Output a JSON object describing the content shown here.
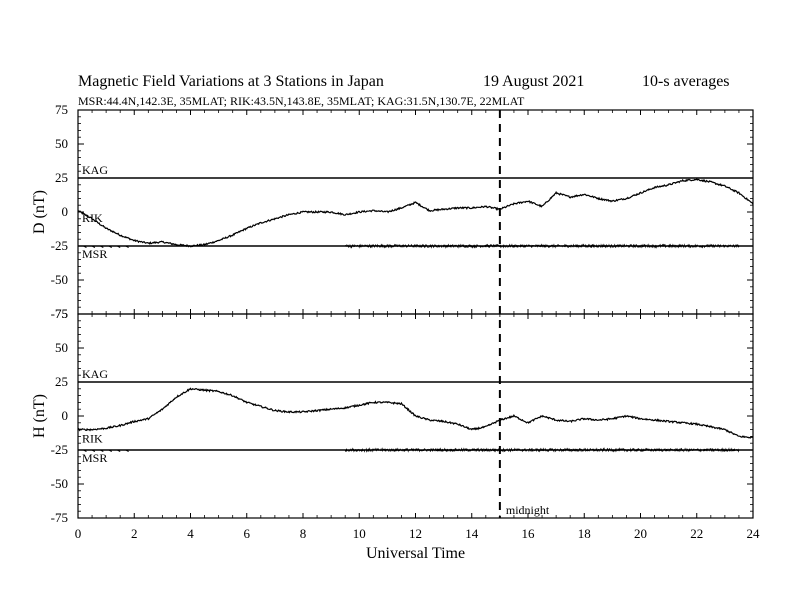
{
  "title": {
    "main": "Magnetic Field Variations at 3 Stations in Japan",
    "date": "19  August  2021",
    "averaging": "10-s averages"
  },
  "subtitle": "MSR:44.4N,142.3E, 35MLAT;  RIK:43.5N,143.8E, 35MLAT;  KAG:31.5N,130.7E, 22MLAT",
  "chart_data": {
    "type": "line",
    "xlabel": "Universal Time",
    "xlim": [
      0,
      24
    ],
    "x_ticks": [
      0,
      2,
      4,
      6,
      8,
      10,
      12,
      14,
      16,
      18,
      20,
      22,
      24
    ],
    "marker": {
      "x": 15,
      "label": "midnight"
    },
    "panels": [
      {
        "ylabel": "D (nT)",
        "ylim": [
          -75,
          75
        ],
        "y_ticks": [
          75,
          50,
          25,
          0,
          -25,
          -50,
          -75
        ],
        "series": [
          {
            "name": "KAG",
            "type": "flat",
            "offset": 25,
            "label_y": 25
          },
          {
            "name": "RIK",
            "offset": 0,
            "label_y": 0,
            "x": [
              0,
              0.5,
              1,
              1.5,
              2,
              2.5,
              3,
              3.5,
              4,
              4.5,
              5,
              5.5,
              6,
              6.5,
              7,
              7.5,
              8,
              8.5,
              9,
              9.5,
              10,
              10.5,
              11,
              11.5,
              12,
              12.5,
              13,
              13.5,
              14,
              14.5,
              15,
              15.5,
              16,
              16.5,
              17,
              17.5,
              18,
              18.5,
              19,
              19.5,
              20,
              20.5,
              21,
              21.5,
              22,
              22.5,
              23,
              23.5,
              24
            ],
            "y": [
              1,
              -5,
              -12,
              -17,
              -21,
              -23,
              -22,
              -24,
              -25,
              -24,
              -21,
              -17,
              -12,
              -8,
              -5,
              -2,
              0,
              0,
              0,
              -2,
              0,
              1,
              0,
              3,
              7,
              1,
              2,
              3,
              3,
              4,
              2,
              6,
              8,
              4,
              14,
              11,
              13,
              10,
              8,
              10,
              14,
              18,
              20,
              23,
              24,
              22,
              19,
              14,
              6
            ]
          },
          {
            "name": "MSR",
            "type": "noise",
            "offset": -25,
            "label_y": -25,
            "start": 9.5,
            "end": 23.5,
            "amplitude": 1
          }
        ]
      },
      {
        "ylabel": "H (nT)",
        "ylim": [
          -75,
          75
        ],
        "y_ticks": [
          75,
          50,
          25,
          0,
          -25,
          -50,
          -75
        ],
        "series": [
          {
            "name": "KAG",
            "type": "flat",
            "offset": 25,
            "label_y": 25
          },
          {
            "name": "RIK",
            "offset": 0,
            "label_y": -12,
            "x": [
              0,
              0.5,
              1,
              1.5,
              2,
              2.5,
              3,
              3.5,
              4,
              4.5,
              5,
              5.5,
              6,
              6.5,
              7,
              7.5,
              8,
              8.5,
              9,
              9.5,
              10,
              10.5,
              11,
              11.5,
              12,
              12.5,
              13,
              13.5,
              14,
              14.5,
              15,
              15.5,
              16,
              16.5,
              17,
              17.5,
              18,
              18.5,
              19,
              19.5,
              20,
              20.5,
              21,
              21.5,
              22,
              22.5,
              23,
              23.5,
              24
            ],
            "y": [
              -10,
              -10,
              -9,
              -7,
              -4,
              -2,
              5,
              14,
              20,
              19,
              18,
              15,
              10,
              7,
              4,
              3,
              3,
              4,
              5,
              6,
              8,
              10,
              10,
              9,
              0,
              -3,
              -4,
              -6,
              -10,
              -8,
              -3,
              0,
              -5,
              0,
              -3,
              -4,
              -2,
              -3,
              -2,
              0,
              -2,
              -3,
              -4,
              -5,
              -6,
              -8,
              -10,
              -15,
              -16
            ]
          },
          {
            "name": "MSR",
            "type": "noise",
            "offset": -25,
            "label_y": -25,
            "start": 9.5,
            "end": 23.5,
            "amplitude": 1
          }
        ]
      }
    ]
  }
}
